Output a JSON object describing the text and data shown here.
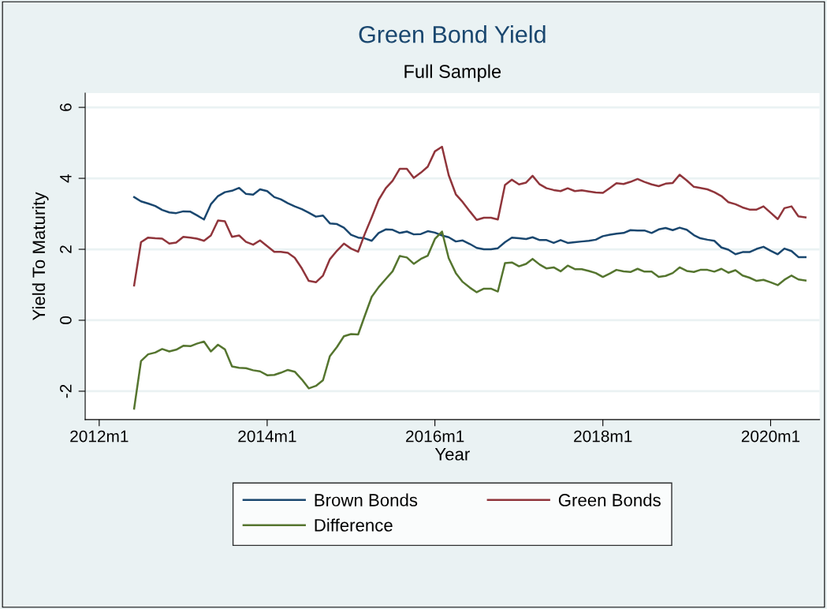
{
  "chart_data": {
    "type": "line",
    "title": "Green Bond Yield",
    "subtitle": "Full Sample",
    "xlabel": "Year",
    "ylabel": "Yield To Maturity",
    "x": [
      "2012-06",
      "2012-07",
      "2012-08",
      "2012-09",
      "2012-10",
      "2012-11",
      "2012-12",
      "2013-01",
      "2013-02",
      "2013-03",
      "2013-04",
      "2013-05",
      "2013-06",
      "2013-07",
      "2013-08",
      "2013-09",
      "2013-10",
      "2013-11",
      "2013-12",
      "2014-01",
      "2014-02",
      "2014-03",
      "2014-04",
      "2014-05",
      "2014-06",
      "2014-07",
      "2014-08",
      "2014-09",
      "2014-10",
      "2014-11",
      "2014-12",
      "2015-01",
      "2015-02",
      "2015-03",
      "2015-04",
      "2015-05",
      "2015-06",
      "2015-07",
      "2015-08",
      "2015-09",
      "2015-10",
      "2015-11",
      "2015-12",
      "2016-01",
      "2016-02",
      "2016-03",
      "2016-04",
      "2016-05",
      "2016-06",
      "2016-07",
      "2016-08",
      "2016-09",
      "2016-10",
      "2016-11",
      "2016-12",
      "2017-01",
      "2017-02",
      "2017-03",
      "2017-04",
      "2017-05",
      "2017-06",
      "2017-07",
      "2017-08",
      "2017-09",
      "2017-10",
      "2017-11",
      "2017-12",
      "2018-01",
      "2018-02",
      "2018-03",
      "2018-04",
      "2018-05",
      "2018-06",
      "2018-07",
      "2018-08",
      "2018-09",
      "2018-10",
      "2018-11",
      "2018-12",
      "2019-01",
      "2019-02",
      "2019-03",
      "2019-04",
      "2019-05",
      "2019-06",
      "2019-07",
      "2019-08",
      "2019-09",
      "2019-10",
      "2019-11",
      "2019-12",
      "2020-01",
      "2020-02",
      "2020-03",
      "2020-04",
      "2020-05",
      "2020-06"
    ],
    "series": [
      {
        "name": "Brown Bonds",
        "color": "#1a476f",
        "values": [
          3.47,
          3.35,
          3.29,
          3.22,
          3.11,
          3.04,
          3.02,
          3.07,
          3.06,
          2.96,
          2.84,
          3.27,
          3.5,
          3.61,
          3.65,
          3.73,
          3.56,
          3.54,
          3.69,
          3.64,
          3.47,
          3.41,
          3.3,
          3.21,
          3.13,
          3.03,
          2.92,
          2.95,
          2.73,
          2.71,
          2.61,
          2.41,
          2.33,
          2.31,
          2.24,
          2.46,
          2.56,
          2.55,
          2.46,
          2.5,
          2.42,
          2.43,
          2.51,
          2.47,
          2.39,
          2.34,
          2.22,
          2.25,
          2.15,
          2.04,
          2.0,
          2.0,
          2.03,
          2.2,
          2.33,
          2.31,
          2.29,
          2.34,
          2.26,
          2.26,
          2.18,
          2.26,
          2.18,
          2.2,
          2.22,
          2.24,
          2.27,
          2.37,
          2.41,
          2.44,
          2.46,
          2.54,
          2.53,
          2.53,
          2.46,
          2.56,
          2.6,
          2.54,
          2.61,
          2.55,
          2.4,
          2.31,
          2.27,
          2.24,
          2.05,
          1.99,
          1.86,
          1.92,
          1.92,
          2.01,
          2.07,
          1.96,
          1.86,
          2.02,
          1.95,
          1.78,
          1.78
        ]
      },
      {
        "name": "Green Bonds",
        "color": "#90353b",
        "values": [
          0.98,
          2.2,
          2.33,
          2.31,
          2.3,
          2.16,
          2.19,
          2.35,
          2.33,
          2.3,
          2.24,
          2.39,
          2.81,
          2.79,
          2.35,
          2.39,
          2.21,
          2.13,
          2.25,
          2.09,
          1.93,
          1.93,
          1.9,
          1.76,
          1.46,
          1.11,
          1.07,
          1.26,
          1.72,
          1.96,
          2.16,
          2.02,
          1.93,
          2.42,
          2.9,
          3.39,
          3.72,
          3.93,
          4.27,
          4.27,
          4.01,
          4.16,
          4.33,
          4.76,
          4.89,
          4.09,
          3.55,
          3.33,
          3.07,
          2.83,
          2.89,
          2.89,
          2.84,
          3.81,
          3.96,
          3.83,
          3.88,
          4.07,
          3.83,
          3.72,
          3.67,
          3.64,
          3.72,
          3.64,
          3.66,
          3.63,
          3.6,
          3.59,
          3.73,
          3.86,
          3.84,
          3.9,
          3.98,
          3.9,
          3.83,
          3.78,
          3.85,
          3.87,
          4.1,
          3.94,
          3.76,
          3.73,
          3.69,
          3.61,
          3.5,
          3.33,
          3.27,
          3.18,
          3.12,
          3.12,
          3.21,
          3.03,
          2.85,
          3.16,
          3.21,
          2.93,
          2.9
        ]
      },
      {
        "name": "Difference",
        "color": "#55752f",
        "values": [
          -2.49,
          -1.15,
          -0.96,
          -0.91,
          -0.81,
          -0.88,
          -0.83,
          -0.72,
          -0.73,
          -0.66,
          -0.6,
          -0.88,
          -0.69,
          -0.82,
          -1.3,
          -1.34,
          -1.35,
          -1.41,
          -1.44,
          -1.55,
          -1.54,
          -1.48,
          -1.4,
          -1.45,
          -1.67,
          -1.92,
          -1.85,
          -1.69,
          -1.01,
          -0.75,
          -0.45,
          -0.39,
          -0.4,
          0.11,
          0.66,
          0.93,
          1.16,
          1.38,
          1.81,
          1.77,
          1.59,
          1.73,
          1.82,
          2.29,
          2.5,
          1.75,
          1.33,
          1.08,
          0.92,
          0.79,
          0.89,
          0.89,
          0.81,
          1.61,
          1.63,
          1.52,
          1.59,
          1.73,
          1.57,
          1.46,
          1.49,
          1.38,
          1.54,
          1.44,
          1.44,
          1.39,
          1.33,
          1.22,
          1.32,
          1.42,
          1.38,
          1.36,
          1.45,
          1.37,
          1.37,
          1.22,
          1.25,
          1.33,
          1.49,
          1.39,
          1.36,
          1.42,
          1.42,
          1.37,
          1.45,
          1.34,
          1.41,
          1.26,
          1.2,
          1.11,
          1.14,
          1.07,
          0.99,
          1.14,
          1.26,
          1.15,
          1.12
        ]
      }
    ],
    "xlim": [
      "2011-11",
      "2020-08"
    ],
    "xticks": [
      {
        "value": "2012-01",
        "label": "2012m1"
      },
      {
        "value": "2014-01",
        "label": "2014m1"
      },
      {
        "value": "2016-01",
        "label": "2016m1"
      },
      {
        "value": "2018-01",
        "label": "2018m1"
      },
      {
        "value": "2020-01",
        "label": "2020m1"
      }
    ],
    "ylim": [
      -2.8,
      6.4
    ],
    "yticks": [
      -2,
      0,
      2,
      4,
      6
    ],
    "grid": "y",
    "legend": "bottom",
    "marker": "none",
    "line_style": "solid"
  }
}
